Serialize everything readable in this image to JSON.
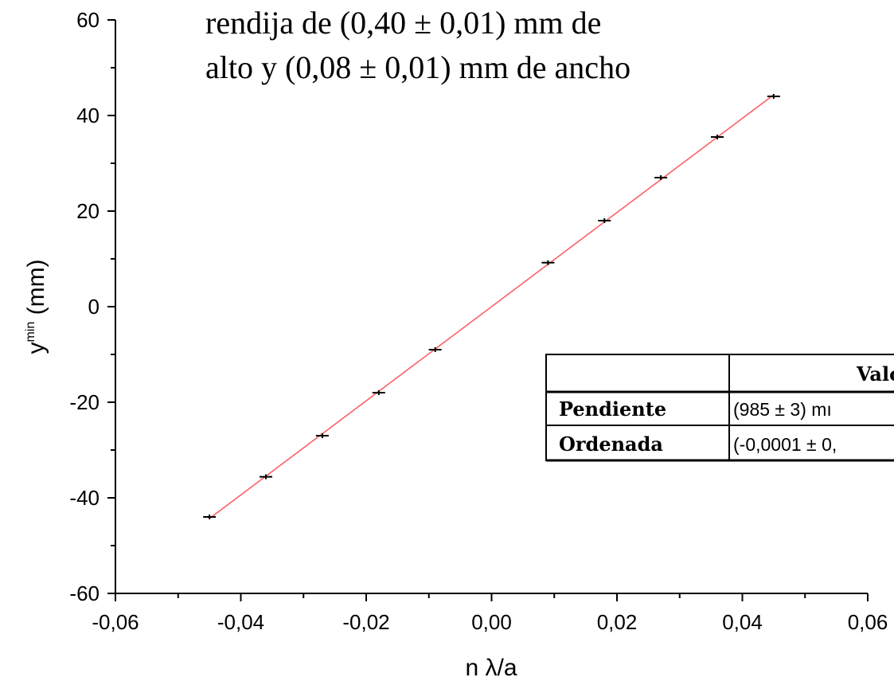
{
  "chart_data": {
    "type": "scatter",
    "title_lines": [
      "rendija de (0,40 ± 0,01) mm de",
      "alto y (0,08 ± 0,01) mm de ancho"
    ],
    "xlabel": "n λ/a",
    "ylabel_main": "y",
    "ylabel_sup": "min",
    "ylabel_unit": " (mm)",
    "xlim": [
      -0.06,
      0.06
    ],
    "ylim": [
      -60,
      60
    ],
    "x_ticks": [
      -0.06,
      -0.04,
      -0.02,
      0.0,
      0.02,
      0.04,
      0.06
    ],
    "x_tick_labels": [
      "-0,06",
      "-0,04",
      "-0,02",
      "0,00",
      "0,02",
      "0,04",
      "0,06"
    ],
    "y_ticks": [
      -60,
      -40,
      -20,
      0,
      20,
      40,
      60
    ],
    "y_tick_labels": [
      "-60",
      "-40",
      "-20",
      "0",
      "20",
      "40",
      "60"
    ],
    "grid": false,
    "series": [
      {
        "x": [
          -0.045,
          -0.036,
          -0.027,
          -0.018,
          -0.009,
          0.009,
          0.018,
          0.027,
          0.036,
          0.045
        ],
        "y": [
          -44.0,
          -35.6,
          -27.0,
          -18.0,
          -9.0,
          9.2,
          18.0,
          27.0,
          35.5,
          44.0
        ],
        "color": "#000000"
      }
    ],
    "fit": {
      "slope": 985,
      "intercept": -0.0001,
      "x_range": [
        -0.045,
        0.045
      ],
      "color": "#ff6060"
    }
  },
  "table": {
    "header": [
      "",
      "Valo"
    ],
    "rows": [
      [
        "Pendiente",
        "(985 ± 3) mı"
      ],
      [
        "Ordenada",
        "(-0,0001 ± 0,"
      ]
    ]
  }
}
